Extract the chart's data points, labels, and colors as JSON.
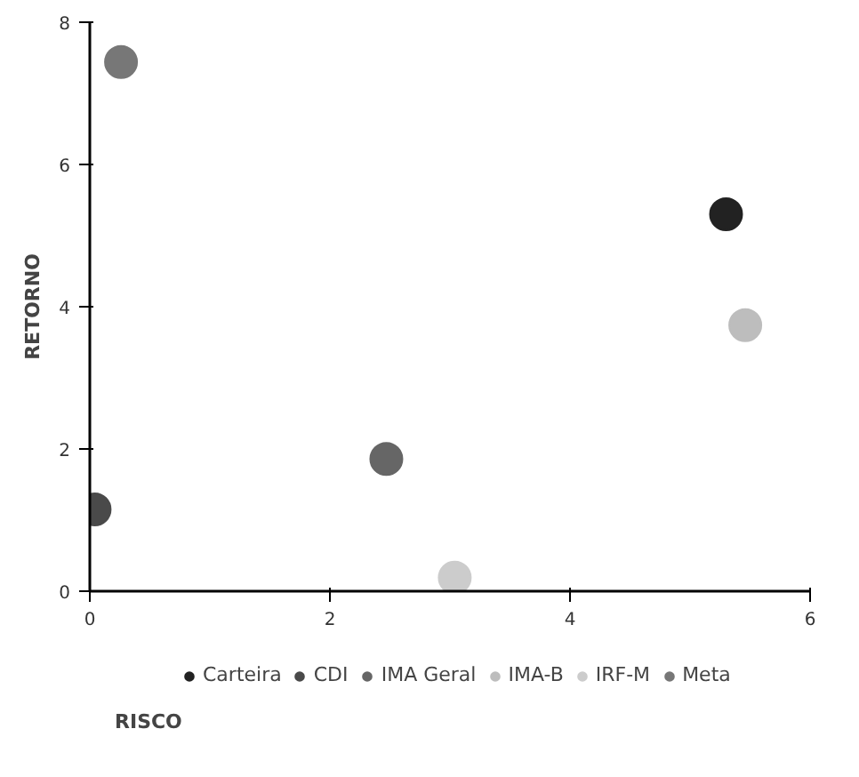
{
  "chart_data": {
    "type": "scatter",
    "xlabel": "RISCO",
    "ylabel": "RETORNO",
    "xlim": [
      0,
      6
    ],
    "ylim": [
      0,
      8
    ],
    "xticks": [
      0,
      2,
      4,
      6
    ],
    "yticks": [
      0,
      2,
      4,
      6,
      8
    ],
    "grid": false,
    "legend": "bottom",
    "marker": "circle",
    "series": [
      {
        "name": "Carteira",
        "color": "#222222",
        "x": [
          5.3
        ],
        "values": [
          5.3
        ]
      },
      {
        "name": "CDI",
        "color": "#4a4a4a",
        "x": [
          0.04
        ],
        "values": [
          1.15
        ]
      },
      {
        "name": "IMA Geral",
        "color": "#666666",
        "x": [
          2.47
        ],
        "values": [
          1.86
        ]
      },
      {
        "name": "IMA-B",
        "color": "#bdbdbd",
        "x": [
          5.46
        ],
        "values": [
          3.74
        ]
      },
      {
        "name": "IRF-M",
        "color": "#cccccc",
        "x": [
          3.04
        ],
        "values": [
          0.19
        ]
      },
      {
        "name": "Meta",
        "color": "#777777",
        "x": [
          0.26
        ],
        "values": [
          7.44
        ]
      }
    ]
  }
}
